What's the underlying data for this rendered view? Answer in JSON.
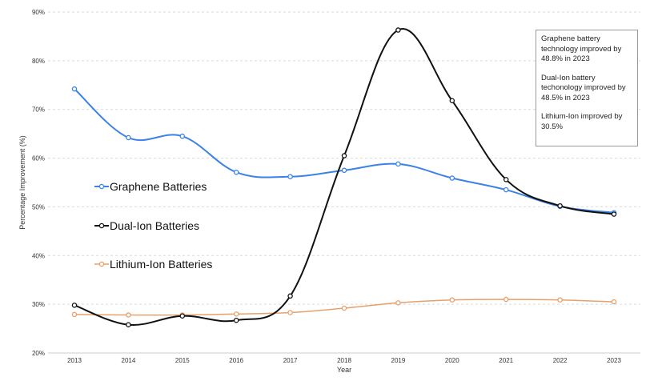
{
  "chart_data": {
    "type": "line",
    "title": "",
    "xlabel": "Year",
    "ylabel": "Percentage Improvement (%)",
    "ylim": [
      20,
      90
    ],
    "yticks": [
      "20%",
      "30%",
      "40%",
      "50%",
      "60%",
      "70%",
      "80%",
      "90%"
    ],
    "grid": "horizontal dashed",
    "x": [
      "2013",
      "2014",
      "2015",
      "2016",
      "2017",
      "2018",
      "2019",
      "2020",
      "2021",
      "2022",
      "2023"
    ],
    "series": [
      {
        "name": "Graphene Batteries",
        "color": "#3b82e8",
        "values": [
          74.2,
          64.2,
          64.5,
          57.1,
          56.2,
          57.5,
          58.8,
          55.9,
          53.5,
          50.1,
          48.8
        ]
      },
      {
        "name": "Dual-Ion Batteries",
        "color": "#111111",
        "values": [
          29.8,
          25.8,
          27.6,
          26.7,
          31.7,
          60.5,
          86.3,
          71.8,
          55.6,
          50.2,
          48.5
        ]
      },
      {
        "name": "Lithium-Ion Batteries",
        "color": "#e8a06a",
        "values": [
          27.9,
          27.8,
          27.8,
          28.0,
          28.3,
          29.2,
          30.3,
          30.9,
          31.0,
          30.9,
          30.5
        ]
      }
    ],
    "legend_position": "left-center",
    "annotations": [
      "Graphene battery technology improved by 48.8% in 2023",
      "Dual-Ion battery techonology improved by 48.5% in 2023",
      "Lithium-Ion improved by 30.5%"
    ]
  }
}
